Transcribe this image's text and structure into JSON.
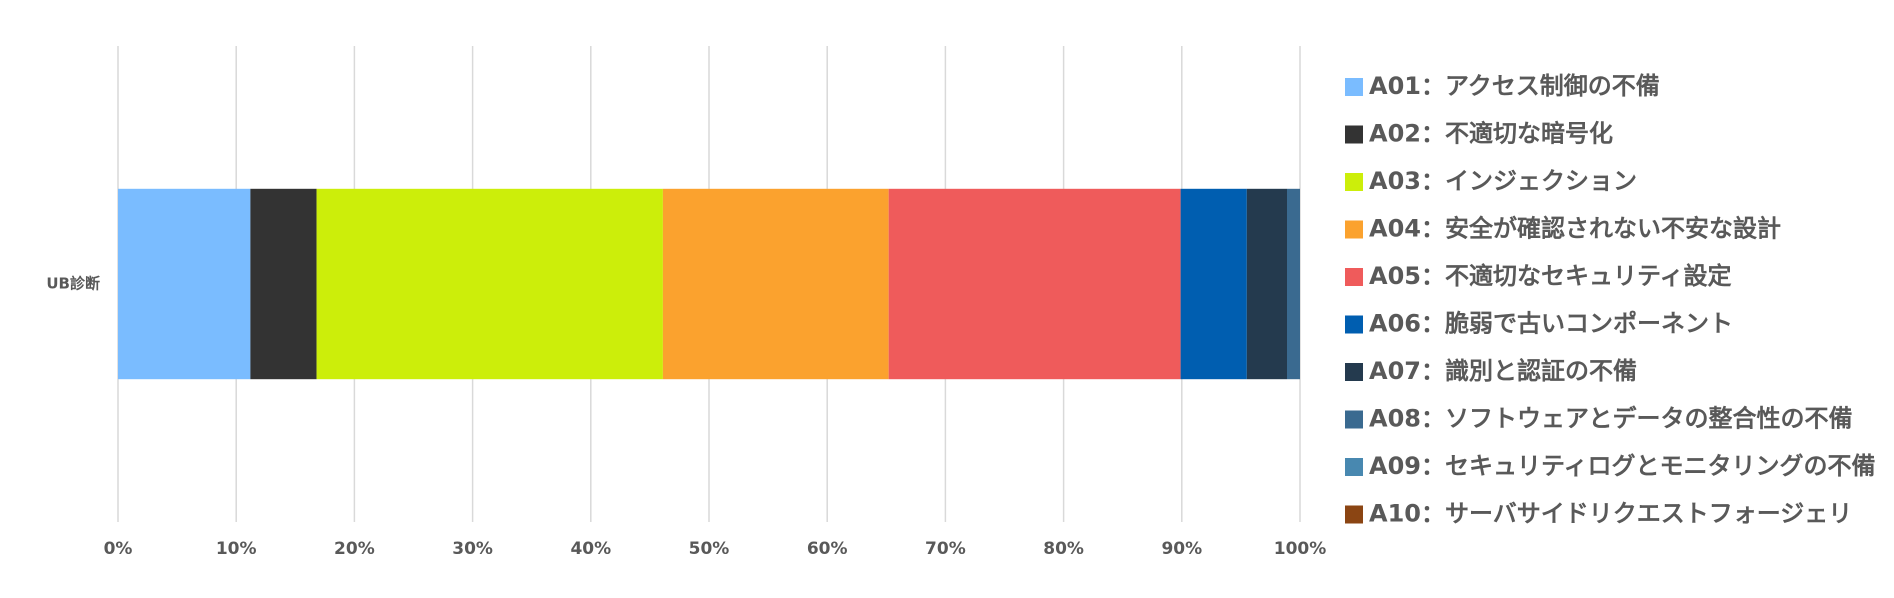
{
  "chart_data": {
    "type": "stacked-bar-horizontal",
    "categories": [
      "UB診断"
    ],
    "series": [
      {
        "name": "A01：アクセス制御の不備",
        "color": "#7abcff",
        "values": [
          11.2
        ]
      },
      {
        "name": "A02：不適切な暗号化",
        "color": "#333333",
        "values": [
          5.6
        ]
      },
      {
        "name": "A03：インジェクション",
        "color": "#ccee0a",
        "values": [
          29.3
        ]
      },
      {
        "name": "A04：安全が確認されない不安な設計",
        "color": "#fba22e",
        "values": [
          19.1
        ]
      },
      {
        "name": "A05：不適切なセキュリティ設定",
        "color": "#ef5b5b",
        "values": [
          24.7
        ]
      },
      {
        "name": "A06：脆弱で古いコンポーネント",
        "color": "#005eb0",
        "values": [
          5.6
        ]
      },
      {
        "name": "A07：識別と認証の不備",
        "color": "#243a4e",
        "values": [
          3.4
        ]
      },
      {
        "name": "A08：ソフトウェアとデータの整合性の不備",
        "color": "#3a6a90",
        "values": [
          1.1
        ]
      },
      {
        "name": "A09：セキュリティログとモニタリングの不備",
        "color": "#4888b0",
        "values": [
          0
        ]
      },
      {
        "name": "A10：サーバサイドリクエストフォージェリ",
        "color": "#8b4513",
        "values": [
          0
        ]
      }
    ],
    "xlim": [
      0,
      100
    ],
    "xticks": [
      {
        "value": 0,
        "label": "0%"
      },
      {
        "value": 10,
        "label": "10%"
      },
      {
        "value": 20,
        "label": "20%"
      },
      {
        "value": 30,
        "label": "30%"
      },
      {
        "value": 40,
        "label": "40%"
      },
      {
        "value": 50,
        "label": "50%"
      },
      {
        "value": 60,
        "label": "60%"
      },
      {
        "value": 70,
        "label": "70%"
      },
      {
        "value": 80,
        "label": "80%"
      },
      {
        "value": 90,
        "label": "90%"
      },
      {
        "value": 100,
        "label": "100%"
      }
    ],
    "grid": true,
    "legend": "right"
  }
}
